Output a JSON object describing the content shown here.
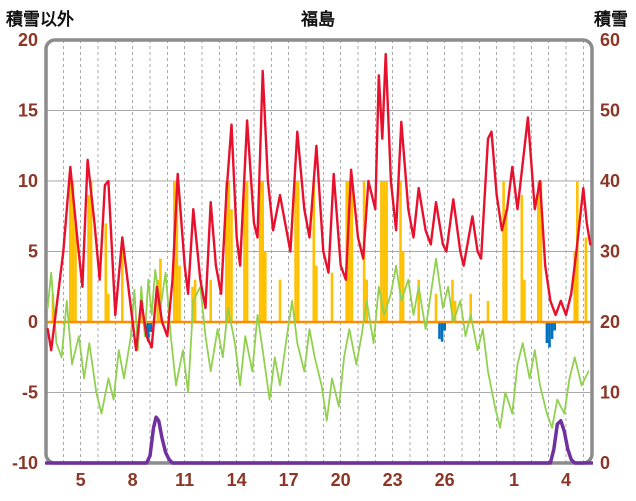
{
  "header": {
    "left_label": "積雪以外",
    "title": "福島",
    "right_label": "積雪"
  },
  "chart_data": {
    "type": "line",
    "title": "福島",
    "left_axis": {
      "title": "積雪以外",
      "min": -10,
      "max": 20,
      "ticks": [
        20,
        15,
        10,
        5,
        0,
        -5,
        -10
      ]
    },
    "right_axis": {
      "title": "積雪",
      "min": 0,
      "max": 60,
      "ticks": [
        60,
        50,
        40,
        30,
        20,
        10,
        0
      ]
    },
    "x_axis": {
      "min": 3,
      "max": 34.5,
      "grid_start": 4,
      "grid_end": 34,
      "tick_days": [
        5,
        8,
        11,
        14,
        17,
        20,
        23,
        26,
        30,
        33
      ],
      "tick_labels": [
        "5",
        "8",
        "11",
        "14",
        "17",
        "20",
        "23",
        "26",
        "1",
        "4"
      ]
    },
    "grid_values": [
      15,
      10,
      5,
      -5
    ],
    "styles": {
      "axis_text_color": "#8b3626",
      "grid_color": "#aaaaaa",
      "frame_color": "#8c8c8c",
      "zero_line_color": "#ff8c00",
      "background": "#ffffff"
    },
    "series": [
      {
        "name": "sunshine-bars",
        "type": "bar",
        "axis": "left",
        "color": "#ffc000",
        "bars": [
          [
            3.4,
            2
          ],
          [
            4.4,
            10
          ],
          [
            4.55,
            10
          ],
          [
            4.7,
            7
          ],
          [
            5.45,
            9
          ],
          [
            5.6,
            10
          ],
          [
            6.45,
            7
          ],
          [
            6.6,
            2
          ],
          [
            7.4,
            6
          ],
          [
            8.5,
            2
          ],
          [
            9.45,
            3
          ],
          [
            9.6,
            4.5
          ],
          [
            10.4,
            10
          ],
          [
            10.55,
            10
          ],
          [
            10.7,
            4
          ],
          [
            11.45,
            2.5
          ],
          [
            11.6,
            3
          ],
          [
            12.5,
            3
          ],
          [
            13.4,
            10
          ],
          [
            13.55,
            10
          ],
          [
            13.7,
            8
          ],
          [
            14.45,
            10
          ],
          [
            14.6,
            10
          ],
          [
            15.35,
            10
          ],
          [
            15.5,
            10
          ],
          [
            15.65,
            5
          ],
          [
            16.5,
            3
          ],
          [
            17.4,
            10
          ],
          [
            17.55,
            10
          ],
          [
            18.45,
            10
          ],
          [
            18.6,
            4
          ],
          [
            19.5,
            3.5
          ],
          [
            20.35,
            10
          ],
          [
            20.5,
            10
          ],
          [
            20.65,
            10
          ],
          [
            21.35,
            10
          ],
          [
            21.5,
            3
          ],
          [
            22.35,
            10
          ],
          [
            22.5,
            10
          ],
          [
            22.65,
            10
          ],
          [
            23.45,
            10
          ],
          [
            23.6,
            5
          ],
          [
            24.5,
            3
          ],
          [
            25.5,
            2
          ],
          [
            26.45,
            3
          ],
          [
            26.6,
            1.5
          ],
          [
            27.5,
            2
          ],
          [
            28.5,
            1.5
          ],
          [
            29.4,
            10
          ],
          [
            29.55,
            8
          ],
          [
            30.45,
            9
          ],
          [
            30.6,
            3
          ],
          [
            31.4,
            10
          ],
          [
            31.55,
            10
          ],
          [
            33.5,
            5
          ],
          [
            33.65,
            10
          ],
          [
            34.15,
            6
          ]
        ]
      },
      {
        "name": "precipitation-bars",
        "type": "bar",
        "axis": "left",
        "color": "#0070c0",
        "bars": [
          [
            8.75,
            -1
          ],
          [
            8.9,
            -1.4
          ],
          [
            9.05,
            -0.7
          ],
          [
            25.7,
            -1.2
          ],
          [
            25.85,
            -1.4
          ],
          [
            26.0,
            -0.6
          ],
          [
            31.9,
            -1.5
          ],
          [
            32.05,
            -1.8
          ],
          [
            32.2,
            -1.2
          ],
          [
            32.35,
            -0.6
          ]
        ]
      },
      {
        "name": "green-line",
        "type": "line",
        "axis": "left",
        "color": "#92d050",
        "width": 1.8,
        "points": [
          [
            3.1,
            1
          ],
          [
            3.3,
            3.5
          ],
          [
            3.6,
            -1.5
          ],
          [
            3.9,
            -2.5
          ],
          [
            4.2,
            1.5
          ],
          [
            4.5,
            -3
          ],
          [
            4.9,
            -1
          ],
          [
            5.2,
            -4
          ],
          [
            5.5,
            -1.5
          ],
          [
            5.9,
            -5
          ],
          [
            6.2,
            -6.5
          ],
          [
            6.6,
            -4
          ],
          [
            6.9,
            -5.5
          ],
          [
            7.2,
            -2
          ],
          [
            7.5,
            -4
          ],
          [
            7.9,
            -1
          ],
          [
            8.1,
            2.3
          ],
          [
            8.3,
            -2
          ],
          [
            8.5,
            2.5
          ],
          [
            8.7,
            -1
          ],
          [
            8.9,
            3
          ],
          [
            9.1,
            0.5
          ],
          [
            9.3,
            3.7
          ],
          [
            9.6,
            1
          ],
          [
            9.9,
            3.5
          ],
          [
            10.2,
            -1
          ],
          [
            10.5,
            -4.5
          ],
          [
            10.9,
            -2
          ],
          [
            11.2,
            -5
          ],
          [
            11.5,
            1.5
          ],
          [
            11.9,
            2.5
          ],
          [
            12.2,
            -1
          ],
          [
            12.5,
            -3.5
          ],
          [
            12.9,
            -0.5
          ],
          [
            13.2,
            -2.5
          ],
          [
            13.5,
            1
          ],
          [
            13.9,
            -1.5
          ],
          [
            14.2,
            -4.5
          ],
          [
            14.5,
            -1
          ],
          [
            14.9,
            -3.5
          ],
          [
            15.2,
            0.5
          ],
          [
            15.5,
            -2
          ],
          [
            15.9,
            -5.5
          ],
          [
            16.2,
            -2.5
          ],
          [
            16.5,
            -4.5
          ],
          [
            16.9,
            -1
          ],
          [
            17.2,
            1.5
          ],
          [
            17.5,
            -1.5
          ],
          [
            17.9,
            -3.5
          ],
          [
            18.2,
            -0.5
          ],
          [
            18.5,
            -2.5
          ],
          [
            18.9,
            -4.5
          ],
          [
            19.2,
            -7
          ],
          [
            19.5,
            -4
          ],
          [
            19.9,
            -6
          ],
          [
            20.2,
            -2.5
          ],
          [
            20.5,
            -0.5
          ],
          [
            20.9,
            -3
          ],
          [
            21.2,
            -1
          ],
          [
            21.5,
            1.5
          ],
          [
            21.9,
            -1.5
          ],
          [
            22.2,
            2.5
          ],
          [
            22.5,
            0.5
          ],
          [
            22.9,
            2
          ],
          [
            23.2,
            4
          ],
          [
            23.5,
            1.5
          ],
          [
            23.9,
            3
          ],
          [
            24.2,
            0.5
          ],
          [
            24.5,
            2.5
          ],
          [
            24.9,
            -0.5
          ],
          [
            25.2,
            2
          ],
          [
            25.5,
            4.5
          ],
          [
            25.9,
            1
          ],
          [
            26.2,
            2.5
          ],
          [
            26.5,
            0
          ],
          [
            26.9,
            1.5
          ],
          [
            27.2,
            -1
          ],
          [
            27.5,
            0.5
          ],
          [
            27.9,
            -2
          ],
          [
            28.2,
            -0.5
          ],
          [
            28.5,
            -3.5
          ],
          [
            28.9,
            -6
          ],
          [
            29.2,
            -7.5
          ],
          [
            29.5,
            -5
          ],
          [
            29.9,
            -6.5
          ],
          [
            30.2,
            -3
          ],
          [
            30.5,
            -1.5
          ],
          [
            30.9,
            -4
          ],
          [
            31.2,
            -2
          ],
          [
            31.5,
            -4.5
          ],
          [
            31.9,
            -6.5
          ],
          [
            32.2,
            -7.5
          ],
          [
            32.5,
            -5.5
          ],
          [
            32.9,
            -6.5
          ],
          [
            33.2,
            -4
          ],
          [
            33.5,
            -2.5
          ],
          [
            33.9,
            -4.5
          ],
          [
            34.3,
            -3.5
          ]
        ]
      },
      {
        "name": "temperature-line",
        "type": "line",
        "axis": "left",
        "color": "#e8112d",
        "width": 2.4,
        "points": [
          [
            3.1,
            -0.5
          ],
          [
            3.3,
            -2
          ],
          [
            3.6,
            1
          ],
          [
            4.0,
            5
          ],
          [
            4.4,
            11
          ],
          [
            4.8,
            6
          ],
          [
            5.1,
            2.5
          ],
          [
            5.4,
            11.5
          ],
          [
            5.8,
            7
          ],
          [
            6.1,
            3
          ],
          [
            6.4,
            9.7
          ],
          [
            6.6,
            10
          ],
          [
            7.0,
            0.5
          ],
          [
            7.4,
            6
          ],
          [
            7.8,
            2
          ],
          [
            8.2,
            -2
          ],
          [
            8.5,
            1.5
          ],
          [
            8.8,
            -1
          ],
          [
            9.1,
            -1.8
          ],
          [
            9.4,
            2.5
          ],
          [
            9.7,
            0
          ],
          [
            10.0,
            -1
          ],
          [
            10.3,
            3
          ],
          [
            10.6,
            10.5
          ],
          [
            11.0,
            4
          ],
          [
            11.2,
            2
          ],
          [
            11.5,
            8
          ],
          [
            11.9,
            3
          ],
          [
            12.2,
            1
          ],
          [
            12.5,
            8.5
          ],
          [
            12.8,
            4
          ],
          [
            13.1,
            2
          ],
          [
            13.4,
            9
          ],
          [
            13.7,
            14
          ],
          [
            14.0,
            6
          ],
          [
            14.2,
            4
          ],
          [
            14.6,
            14.3
          ],
          [
            15.0,
            7
          ],
          [
            15.2,
            6
          ],
          [
            15.5,
            17.8
          ],
          [
            15.8,
            10
          ],
          [
            16.1,
            6.5
          ],
          [
            16.5,
            9
          ],
          [
            16.8,
            7
          ],
          [
            17.1,
            5
          ],
          [
            17.5,
            13.5
          ],
          [
            17.9,
            8
          ],
          [
            18.2,
            6
          ],
          [
            18.6,
            12.5
          ],
          [
            19.0,
            5
          ],
          [
            19.3,
            3.5
          ],
          [
            19.6,
            10.5
          ],
          [
            20.0,
            4
          ],
          [
            20.3,
            3
          ],
          [
            20.6,
            10.8
          ],
          [
            21.0,
            6
          ],
          [
            21.3,
            4.5
          ],
          [
            21.6,
            10
          ],
          [
            22.0,
            8
          ],
          [
            22.2,
            17.5
          ],
          [
            22.4,
            13
          ],
          [
            22.6,
            19
          ],
          [
            22.9,
            10
          ],
          [
            23.2,
            6.5
          ],
          [
            23.5,
            14.2
          ],
          [
            23.9,
            8
          ],
          [
            24.2,
            6
          ],
          [
            24.5,
            9.5
          ],
          [
            24.9,
            6.5
          ],
          [
            25.2,
            5.5
          ],
          [
            25.5,
            8.5
          ],
          [
            25.9,
            5.5
          ],
          [
            26.1,
            5
          ],
          [
            26.5,
            8.7
          ],
          [
            26.9,
            5
          ],
          [
            27.1,
            4
          ],
          [
            27.6,
            7.5
          ],
          [
            27.9,
            5
          ],
          [
            28.1,
            4.5
          ],
          [
            28.5,
            13
          ],
          [
            28.7,
            13.5
          ],
          [
            29.0,
            9
          ],
          [
            29.3,
            6.5
          ],
          [
            29.6,
            8
          ],
          [
            29.9,
            11
          ],
          [
            30.2,
            8
          ],
          [
            30.8,
            14.5
          ],
          [
            31.2,
            8
          ],
          [
            31.5,
            10
          ],
          [
            31.8,
            4
          ],
          [
            32.1,
            1.5
          ],
          [
            32.4,
            0.5
          ],
          [
            32.7,
            1.5
          ],
          [
            33.0,
            0.5
          ],
          [
            33.3,
            2
          ],
          [
            33.6,
            5
          ],
          [
            34.0,
            9.5
          ],
          [
            34.2,
            7
          ],
          [
            34.4,
            5.5
          ]
        ]
      },
      {
        "name": "snow-depth-line",
        "type": "line",
        "axis": "right",
        "color": "#7030a0",
        "width": 3.5,
        "points": [
          [
            3.0,
            0
          ],
          [
            8.8,
            0
          ],
          [
            9.0,
            1
          ],
          [
            9.2,
            5
          ],
          [
            9.35,
            6.5
          ],
          [
            9.5,
            6
          ],
          [
            9.7,
            3.5
          ],
          [
            9.9,
            1.5
          ],
          [
            10.1,
            0.5
          ],
          [
            10.3,
            0
          ],
          [
            32.1,
            0
          ],
          [
            32.3,
            2
          ],
          [
            32.5,
            5.5
          ],
          [
            32.7,
            6
          ],
          [
            32.9,
            4.5
          ],
          [
            33.1,
            2
          ],
          [
            33.3,
            0.5
          ],
          [
            33.5,
            0
          ],
          [
            34.5,
            0
          ]
        ]
      }
    ]
  }
}
